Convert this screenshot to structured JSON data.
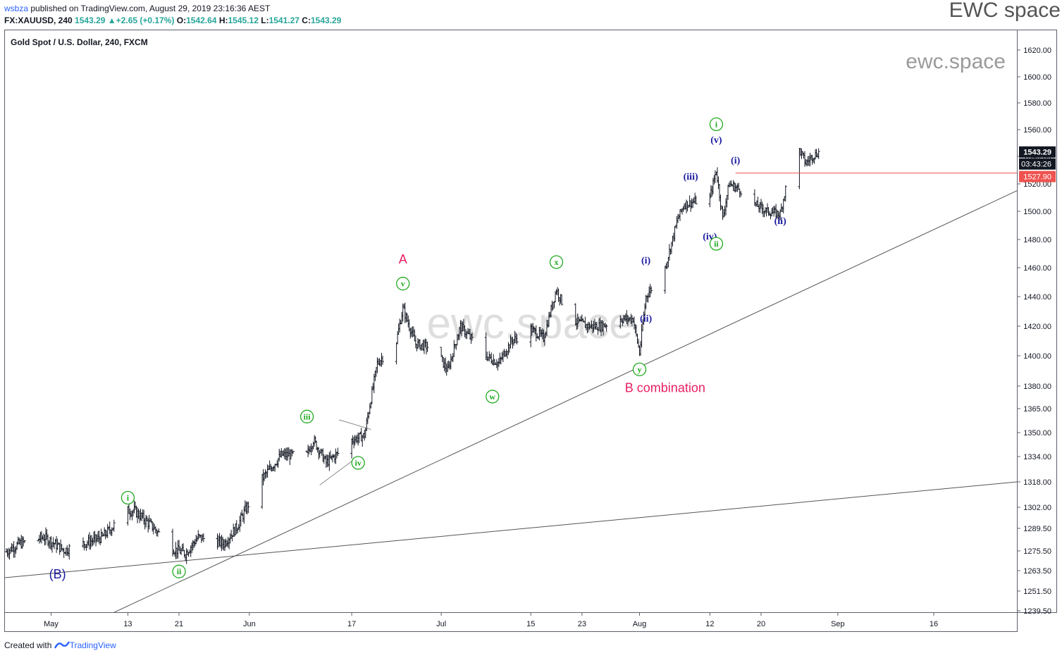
{
  "header": {
    "publisher": "wsbza",
    "published_text": " published on TradingView.com, August 29, 2019 23:16:36 AEST",
    "symbol": "FX:XAUUSD, 240",
    "last": "1543.29",
    "change": "+2.65 (+0.17%)",
    "o_label": "O:",
    "o_value": "1542.64",
    "h_label": "H:",
    "h_value": "1545.12",
    "l_label": "L:",
    "l_value": "1541.27",
    "c_label": "C:",
    "c_value": "1543.29",
    "brand": "EWC space"
  },
  "footer": {
    "created_with": "Created with",
    "tradingview": "TradingView"
  },
  "chart_data": {
    "type": "bar",
    "title": "Gold Spot / U.S. Dollar, 240, FXCM",
    "watermark": "ewc.space",
    "watermark_small": "ewc.space",
    "ylim": [
      1239.5,
      1630
    ],
    "y_ticks": [
      "1620.00",
      "1600.00",
      "1580.00",
      "1560.00",
      "1540.00",
      "1520.00",
      "1500.00",
      "1480.00",
      "1460.00",
      "1440.00",
      "1420.00",
      "1400.00",
      "1380.00",
      "1365.00",
      "1350.00",
      "1334.00",
      "1318.00",
      "1302.00",
      "1289.50",
      "1275.50",
      "1263.50",
      "1251.50",
      "1239.50"
    ],
    "x_ticks": [
      "May",
      "13",
      "21",
      "Jun",
      "17",
      "Jul",
      "15",
      "23",
      "Aug",
      "12",
      "20",
      "Sep",
      "16"
    ],
    "x_tick_dates": [
      "2019-05-01",
      "2019-05-13",
      "2019-05-21",
      "2019-06-01",
      "2019-06-17",
      "2019-07-01",
      "2019-07-15",
      "2019-07-23",
      "2019-08-01",
      "2019-08-12",
      "2019-08-20",
      "2019-09-01",
      "2019-09-16"
    ],
    "price_labels": {
      "last": {
        "text": "1543.29",
        "color": "#131722"
      },
      "countdown": {
        "text": "03:43:26",
        "color": "#131722"
      },
      "horizontal_level": {
        "text": "1527.90",
        "color": "#ef5350"
      }
    },
    "series": [
      {
        "name": "XAUUSD 240",
        "color": "#131722",
        "points": [
          [
            "2019-04-24",
            1275
          ],
          [
            "2019-04-26",
            1280
          ],
          [
            "2019-04-30",
            1284
          ],
          [
            "2019-05-03",
            1276
          ],
          [
            "2019-05-06",
            1280
          ],
          [
            "2019-05-09",
            1284
          ],
          [
            "2019-05-13",
            1300
          ],
          [
            "2019-05-14",
            1300
          ],
          [
            "2019-05-17",
            1290
          ],
          [
            "2019-05-20",
            1277
          ],
          [
            "2019-05-22",
            1274
          ],
          [
            "2019-05-24",
            1284
          ],
          [
            "2019-05-28",
            1280
          ],
          [
            "2019-05-30",
            1290
          ],
          [
            "2019-06-03",
            1320
          ],
          [
            "2019-06-06",
            1335
          ],
          [
            "2019-06-10",
            1335
          ],
          [
            "2019-06-11",
            1345
          ],
          [
            "2019-06-13",
            1330
          ],
          [
            "2019-06-16",
            1340
          ],
          [
            "2019-06-17",
            1345
          ],
          [
            "2019-06-19",
            1348
          ],
          [
            "2019-06-21",
            1395
          ],
          [
            "2019-06-24",
            1410
          ],
          [
            "2019-06-25",
            1432
          ],
          [
            "2019-06-27",
            1408
          ],
          [
            "2019-06-30",
            1405
          ],
          [
            "2019-07-02",
            1390
          ],
          [
            "2019-07-04",
            1420
          ],
          [
            "2019-07-08",
            1400
          ],
          [
            "2019-07-10",
            1395
          ],
          [
            "2019-07-12",
            1410
          ],
          [
            "2019-07-15",
            1418
          ],
          [
            "2019-07-17",
            1412
          ],
          [
            "2019-07-19",
            1445
          ],
          [
            "2019-07-21",
            1425
          ],
          [
            "2019-07-24",
            1420
          ],
          [
            "2019-07-26",
            1420
          ],
          [
            "2019-07-29",
            1425
          ],
          [
            "2019-07-31",
            1425
          ],
          [
            "2019-08-01",
            1402
          ],
          [
            "2019-08-02",
            1440
          ],
          [
            "2019-08-05",
            1460
          ],
          [
            "2019-08-07",
            1495
          ],
          [
            "2019-08-08",
            1505
          ],
          [
            "2019-08-12",
            1510
          ],
          [
            "2019-08-13",
            1530
          ],
          [
            "2019-08-14",
            1495
          ],
          [
            "2019-08-15",
            1520
          ],
          [
            "2019-08-17",
            1515
          ],
          [
            "2019-08-19",
            1505
          ],
          [
            "2019-08-21",
            1500
          ],
          [
            "2019-08-23",
            1498
          ],
          [
            "2019-08-24",
            1520
          ],
          [
            "2019-08-26",
            1545
          ],
          [
            "2019-08-27",
            1535
          ],
          [
            "2019-08-28",
            1540
          ],
          [
            "2019-08-29",
            1543
          ]
        ]
      }
    ],
    "trendlines": [
      {
        "from": [
          "2019-04-20",
          1258
        ],
        "to": [
          "2019-09-29",
          1318
        ]
      },
      {
        "from": [
          "2019-05-10",
          1237
        ],
        "to": [
          "2019-09-29",
          1515
        ]
      }
    ],
    "triangle_lines": [
      {
        "from": [
          "2019-06-15",
          1358
        ],
        "to": [
          "2019-06-20",
          1352
        ]
      },
      {
        "from": [
          "2019-06-12",
          1316
        ],
        "to": [
          "2019-06-18",
          1334
        ]
      }
    ],
    "annotations": [
      {
        "text": "(B)",
        "date": "2019-05-02",
        "value": 1259,
        "color": "#1a1aa0",
        "style": "plain"
      },
      {
        "text": "i",
        "date": "2019-05-13",
        "value": 1308,
        "color": "#22aa22",
        "style": "circle"
      },
      {
        "text": "ii",
        "date": "2019-05-21",
        "value": 1263,
        "color": "#22aa22",
        "style": "circle"
      },
      {
        "text": "iii",
        "date": "2019-06-10",
        "value": 1360,
        "color": "#22aa22",
        "style": "circle"
      },
      {
        "text": "iv",
        "date": "2019-06-18",
        "value": 1330,
        "color": "#22aa22",
        "style": "circle"
      },
      {
        "text": "A",
        "date": "2019-06-25",
        "value": 1463,
        "color": "#e91e63",
        "style": "plain"
      },
      {
        "text": "v",
        "date": "2019-06-25",
        "value": 1449,
        "color": "#22aa22",
        "style": "circle"
      },
      {
        "text": "w",
        "date": "2019-07-09",
        "value": 1373,
        "color": "#22aa22",
        "style": "circle"
      },
      {
        "text": "x",
        "date": "2019-07-19",
        "value": 1464,
        "color": "#22aa22",
        "style": "circle"
      },
      {
        "text": "y",
        "date": "2019-08-01",
        "value": 1391,
        "color": "#22aa22",
        "style": "circle"
      },
      {
        "text": "B combination",
        "date": "2019-08-05",
        "value": 1376,
        "color": "#e91e63",
        "style": "plain"
      },
      {
        "text": "(i)",
        "date": "2019-08-02",
        "value": 1463,
        "color": "#1a1aa0",
        "style": "plain"
      },
      {
        "text": "(ii)",
        "date": "2019-08-02",
        "value": 1423,
        "color": "#1a1aa0",
        "style": "plain"
      },
      {
        "text": "(iii)",
        "date": "2019-08-09",
        "value": 1523,
        "color": "#1a1aa0",
        "style": "plain"
      },
      {
        "text": "(iv)",
        "date": "2019-08-12",
        "value": 1480,
        "color": "#1a1aa0",
        "style": "plain"
      },
      {
        "text": "(v)",
        "date": "2019-08-13",
        "value": 1550,
        "color": "#1a1aa0",
        "style": "plain"
      },
      {
        "text": "i",
        "date": "2019-08-13",
        "value": 1564,
        "color": "#22aa22",
        "style": "circle"
      },
      {
        "text": "ii",
        "date": "2019-08-13",
        "value": 1477,
        "color": "#22aa22",
        "style": "circle"
      },
      {
        "text": "(i)",
        "date": "2019-08-16",
        "value": 1535,
        "color": "#1a1aa0",
        "style": "plain"
      },
      {
        "text": "(ii)",
        "date": "2019-08-23",
        "value": 1491,
        "color": "#1a1aa0",
        "style": "plain"
      }
    ],
    "horizontal_ray": {
      "start_date": "2019-08-16",
      "value": 1527.9,
      "color": "#ef5350"
    }
  }
}
